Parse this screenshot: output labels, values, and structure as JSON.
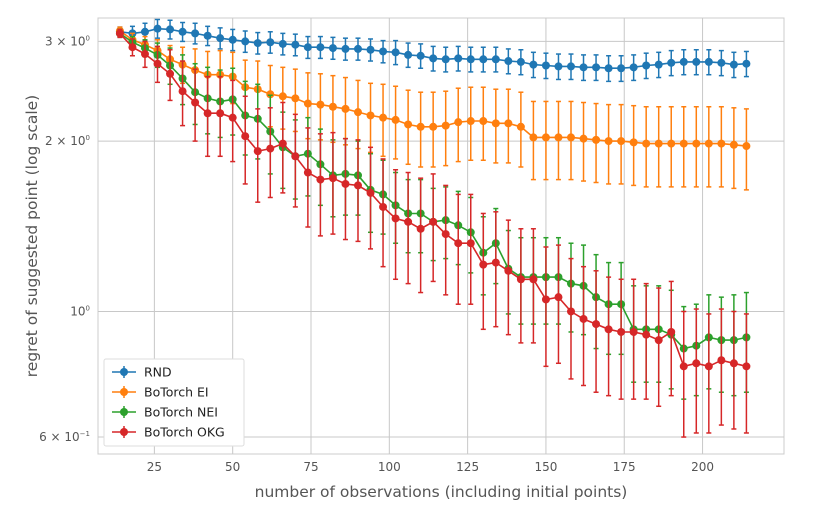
{
  "chart_data": {
    "type": "line",
    "xlabel": "number of observations (including initial points)",
    "ylabel": "regret of suggested point (log scale)",
    "yscale": "log",
    "xlim": [
      7,
      226
    ],
    "ylim": [
      0.56,
      3.3
    ],
    "grid": true,
    "legend_position": "bottom-left",
    "xticks": [
      25,
      50,
      75,
      100,
      125,
      150,
      175,
      200
    ],
    "xtick_labels": [
      "25",
      "50",
      "75",
      "100",
      "125",
      "150",
      "175",
      "200"
    ],
    "yticks": [
      0.6,
      1.0,
      2.0,
      3.0
    ],
    "ytick_labels": [
      {
        "base": "6 × 10",
        "exp": "−1"
      },
      {
        "base": "10",
        "exp": "0"
      },
      {
        "base": "2 × 10",
        "exp": "0"
      },
      {
        "base": "3 × 10",
        "exp": "0"
      }
    ],
    "x": [
      14,
      18,
      22,
      26,
      30,
      34,
      38,
      42,
      46,
      50,
      54,
      58,
      62,
      66,
      70,
      74,
      78,
      82,
      86,
      90,
      94,
      98,
      102,
      106,
      110,
      114,
      118,
      122,
      126,
      130,
      134,
      138,
      142,
      146,
      150,
      154,
      158,
      162,
      166,
      170,
      174,
      178,
      182,
      186,
      190,
      194,
      198,
      202,
      206,
      210,
      214
    ],
    "series": [
      {
        "name": "RND",
        "color": "#1f77b4",
        "values": [
          3.12,
          3.1,
          3.12,
          3.16,
          3.15,
          3.12,
          3.1,
          3.07,
          3.04,
          3.02,
          3.0,
          2.98,
          2.99,
          2.97,
          2.96,
          2.93,
          2.93,
          2.92,
          2.91,
          2.91,
          2.9,
          2.88,
          2.87,
          2.84,
          2.83,
          2.8,
          2.79,
          2.8,
          2.79,
          2.79,
          2.79,
          2.77,
          2.76,
          2.73,
          2.72,
          2.71,
          2.71,
          2.7,
          2.7,
          2.69,
          2.69,
          2.7,
          2.72,
          2.73,
          2.75,
          2.76,
          2.76,
          2.76,
          2.75,
          2.73,
          2.74
        ],
        "err": [
          0.06,
          0.09,
          0.11,
          0.12,
          0.12,
          0.12,
          0.13,
          0.12,
          0.13,
          0.13,
          0.13,
          0.13,
          0.13,
          0.13,
          0.13,
          0.13,
          0.13,
          0.13,
          0.13,
          0.13,
          0.13,
          0.13,
          0.14,
          0.14,
          0.14,
          0.14,
          0.14,
          0.14,
          0.14,
          0.14,
          0.14,
          0.14,
          0.14,
          0.14,
          0.14,
          0.14,
          0.14,
          0.14,
          0.14,
          0.14,
          0.14,
          0.14,
          0.14,
          0.14,
          0.14,
          0.14,
          0.14,
          0.14,
          0.14,
          0.14,
          0.14
        ]
      },
      {
        "name": "BoTorch EI",
        "color": "#ff7f0e",
        "values": [
          3.13,
          3.02,
          2.96,
          2.89,
          2.79,
          2.73,
          2.67,
          2.62,
          2.62,
          2.6,
          2.49,
          2.47,
          2.42,
          2.4,
          2.38,
          2.33,
          2.32,
          2.3,
          2.28,
          2.25,
          2.22,
          2.2,
          2.18,
          2.14,
          2.12,
          2.12,
          2.13,
          2.16,
          2.17,
          2.17,
          2.15,
          2.15,
          2.12,
          2.03,
          2.03,
          2.03,
          2.03,
          2.02,
          2.01,
          2.0,
          2.0,
          1.99,
          1.98,
          1.98,
          1.98,
          1.98,
          1.98,
          1.98,
          1.98,
          1.97,
          1.96
        ],
        "err": [
          0.05,
          0.08,
          0.1,
          0.13,
          0.16,
          0.2,
          0.24,
          0.26,
          0.27,
          0.27,
          0.29,
          0.3,
          0.3,
          0.3,
          0.3,
          0.31,
          0.31,
          0.31,
          0.31,
          0.31,
          0.31,
          0.32,
          0.32,
          0.32,
          0.32,
          0.32,
          0.32,
          0.32,
          0.32,
          0.32,
          0.32,
          0.32,
          0.32,
          0.32,
          0.32,
          0.32,
          0.32,
          0.32,
          0.32,
          0.32,
          0.32,
          0.32,
          0.32,
          0.32,
          0.32,
          0.32,
          0.32,
          0.32,
          0.32,
          0.32,
          0.32
        ]
      },
      {
        "name": "BoTorch NEI",
        "color": "#2ca02c",
        "values": [
          3.1,
          2.99,
          2.92,
          2.84,
          2.72,
          2.58,
          2.44,
          2.38,
          2.35,
          2.37,
          2.22,
          2.19,
          2.08,
          1.95,
          1.88,
          1.9,
          1.82,
          1.74,
          1.75,
          1.74,
          1.64,
          1.61,
          1.54,
          1.49,
          1.49,
          1.44,
          1.45,
          1.42,
          1.38,
          1.27,
          1.32,
          1.19,
          1.15,
          1.15,
          1.15,
          1.15,
          1.12,
          1.11,
          1.06,
          1.03,
          1.03,
          0.93,
          0.93,
          0.93,
          0.91,
          0.86,
          0.87,
          0.9,
          0.89,
          0.89,
          0.9
        ],
        "err": [
          0.05,
          0.07,
          0.1,
          0.14,
          0.2,
          0.26,
          0.3,
          0.32,
          0.32,
          0.32,
          0.33,
          0.33,
          0.33,
          0.3,
          0.3,
          0.3,
          0.28,
          0.27,
          0.27,
          0.26,
          0.26,
          0.24,
          0.22,
          0.22,
          0.22,
          0.21,
          0.21,
          0.21,
          0.21,
          0.2,
          0.2,
          0.2,
          0.2,
          0.2,
          0.2,
          0.2,
          0.2,
          0.2,
          0.2,
          0.19,
          0.19,
          0.18,
          0.18,
          0.18,
          0.18,
          0.16,
          0.16,
          0.17,
          0.17,
          0.18,
          0.18
        ]
      },
      {
        "name": "BoTorch OKG",
        "color": "#d62728",
        "values": [
          3.1,
          2.93,
          2.85,
          2.74,
          2.63,
          2.45,
          2.34,
          2.24,
          2.24,
          2.2,
          2.04,
          1.92,
          1.94,
          1.98,
          1.88,
          1.76,
          1.71,
          1.72,
          1.68,
          1.67,
          1.62,
          1.53,
          1.46,
          1.44,
          1.4,
          1.44,
          1.37,
          1.32,
          1.32,
          1.21,
          1.22,
          1.18,
          1.14,
          1.14,
          1.05,
          1.06,
          1.0,
          0.97,
          0.95,
          0.93,
          0.92,
          0.92,
          0.91,
          0.89,
          0.92,
          0.8,
          0.81,
          0.8,
          0.82,
          0.81,
          0.8
        ],
        "err": [
          0.05,
          0.1,
          0.15,
          0.2,
          0.27,
          0.32,
          0.34,
          0.36,
          0.36,
          0.36,
          0.36,
          0.36,
          0.35,
          0.36,
          0.35,
          0.35,
          0.35,
          0.35,
          0.34,
          0.34,
          0.33,
          0.33,
          0.32,
          0.32,
          0.32,
          0.31,
          0.3,
          0.29,
          0.29,
          0.28,
          0.28,
          0.27,
          0.26,
          0.26,
          0.25,
          0.25,
          0.24,
          0.23,
          0.23,
          0.22,
          0.22,
          0.22,
          0.21,
          0.21,
          0.21,
          0.2,
          0.2,
          0.19,
          0.19,
          0.19,
          0.19
        ]
      }
    ]
  }
}
